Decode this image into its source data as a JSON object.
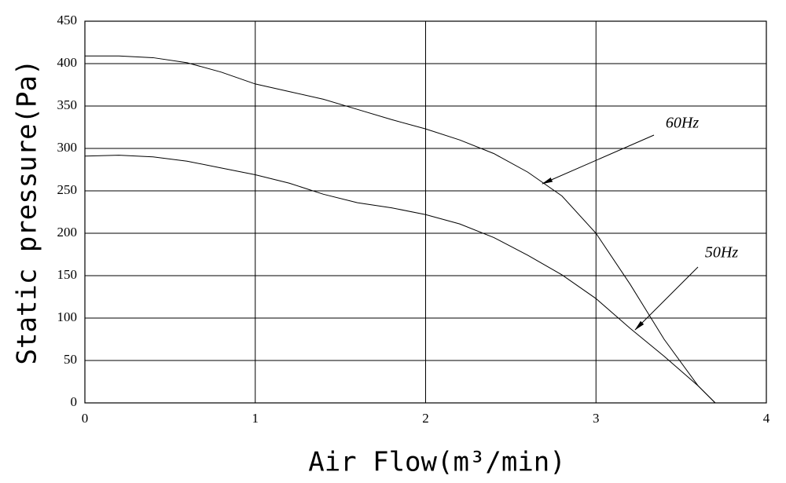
{
  "chart_data": {
    "type": "line",
    "x_label": "Air Flow(m³/min)",
    "y_label": "Static pressure(Pa)",
    "xlim": [
      0,
      4
    ],
    "xticks": [
      0,
      1,
      2,
      3,
      4
    ],
    "ylim": [
      0,
      450
    ],
    "yticks": [
      0,
      50,
      100,
      150,
      200,
      250,
      300,
      350,
      400,
      450
    ],
    "grid": true,
    "series": [
      {
        "name": "60Hz",
        "color": "#000000",
        "x": [
          0,
          0.2,
          0.4,
          0.6,
          0.8,
          1.0,
          1.2,
          1.4,
          1.6,
          1.8,
          2.0,
          2.2,
          2.4,
          2.6,
          2.8,
          3.0,
          3.2,
          3.4,
          3.6,
          3.7
        ],
        "values": [
          409,
          409,
          407,
          401,
          390,
          376,
          367,
          358,
          346,
          334,
          323,
          310,
          294,
          272,
          244,
          200,
          140,
          75,
          20,
          0
        ]
      },
      {
        "name": "50Hz",
        "color": "#000000",
        "x": [
          0,
          0.2,
          0.4,
          0.6,
          0.8,
          1.0,
          1.2,
          1.4,
          1.6,
          1.8,
          2.0,
          2.2,
          2.4,
          2.6,
          2.8,
          3.0,
          3.2,
          3.4,
          3.6,
          3.7
        ],
        "values": [
          291,
          292,
          290,
          285,
          277,
          269,
          259,
          246,
          236,
          230,
          222,
          211,
          195,
          174,
          151,
          123,
          88,
          55,
          20,
          0
        ]
      }
    ]
  }
}
